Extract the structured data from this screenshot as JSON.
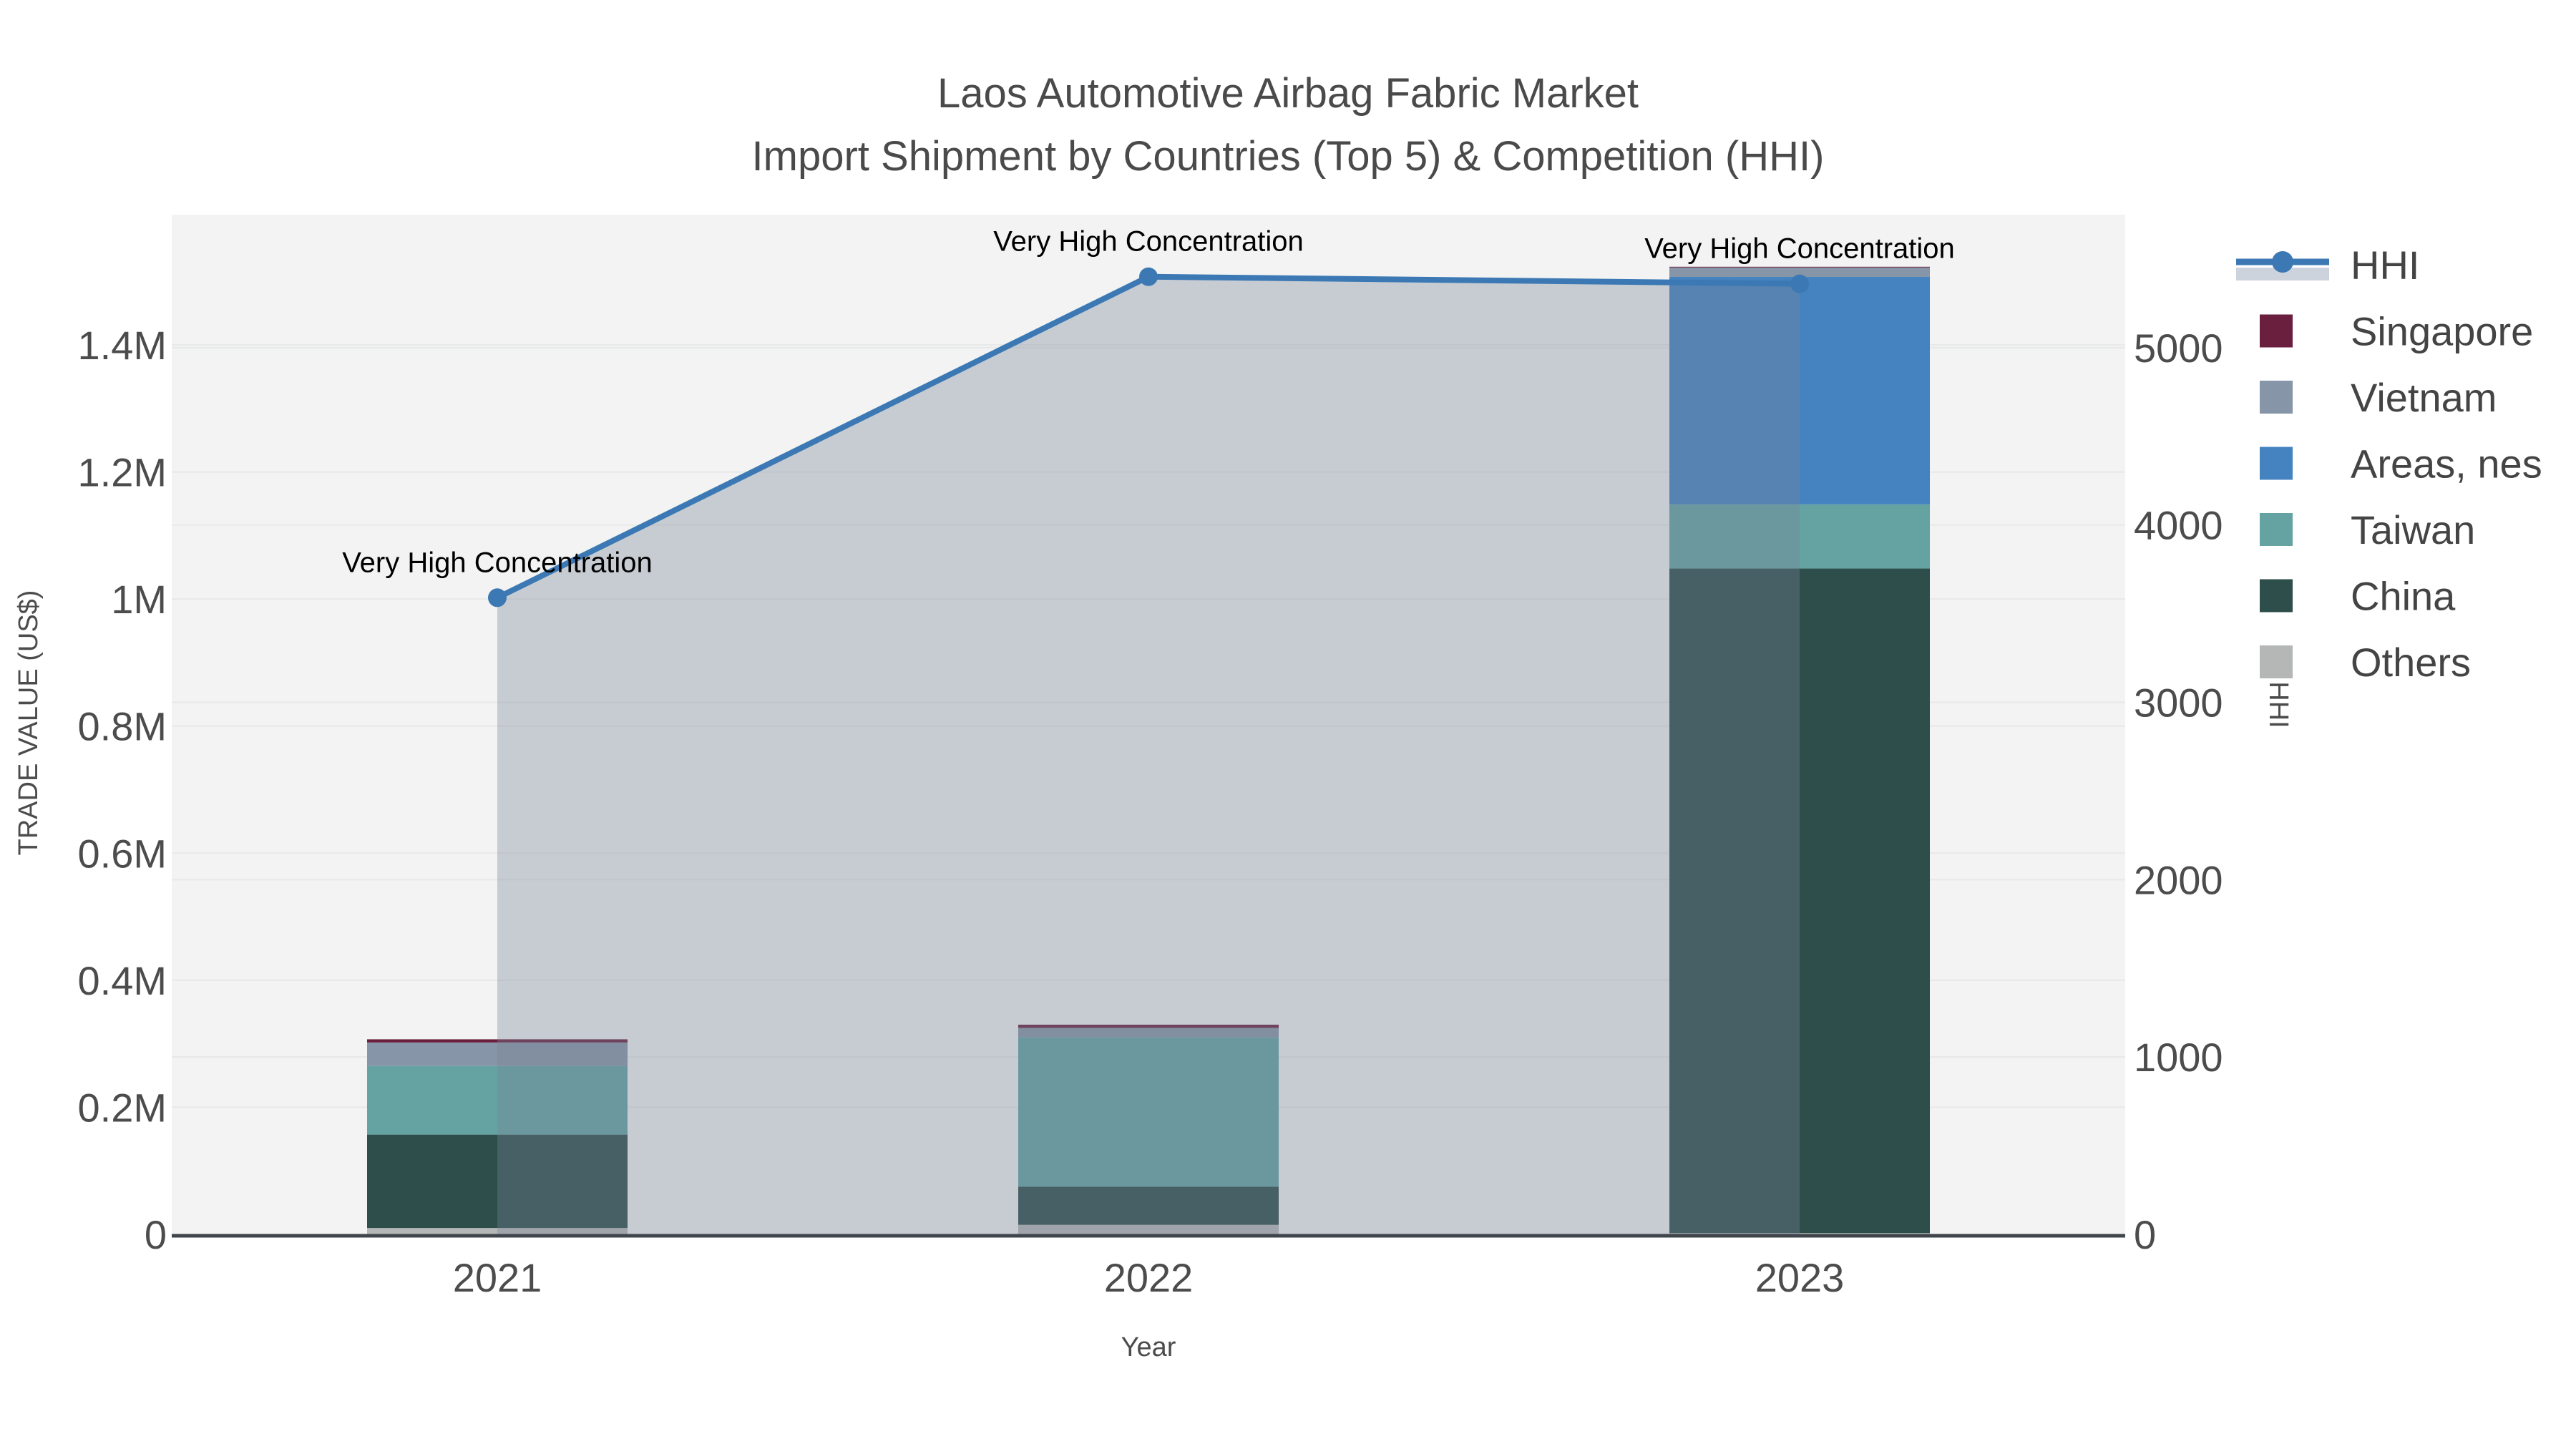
{
  "title": {
    "line1": "Laos Automotive Airbag Fabric Market",
    "line2": "Import Shipment by Countries (Top 5) & Competition (HHI)"
  },
  "axes": {
    "x": {
      "title": "Year",
      "ticks": [
        "2021",
        "2022",
        "2023"
      ]
    },
    "y_left": {
      "title": "TRADE VALUE (US$)",
      "tick_labels": [
        "0",
        "0.2M",
        "0.4M",
        "0.6M",
        "0.8M",
        "1M",
        "1.2M",
        "1.4M"
      ],
      "tick_values": [
        0,
        200000,
        400000,
        600000,
        800000,
        1000000,
        1200000,
        1400000
      ]
    },
    "y_right": {
      "title": "HHI",
      "tick_labels": [
        "0",
        "1000",
        "2000",
        "3000",
        "4000",
        "5000"
      ],
      "tick_values": [
        0,
        1000,
        2000,
        3000,
        4000,
        5000
      ]
    }
  },
  "legend": {
    "items": [
      {
        "label": "HHI",
        "type": "line",
        "color": "#3c79b4",
        "band_color": "#ccd3dc"
      },
      {
        "label": "Singapore",
        "type": "square",
        "color": "#6b1f3f"
      },
      {
        "label": "Vietnam",
        "type": "square",
        "color": "#8695a7"
      },
      {
        "label": "Areas, nes",
        "type": "square",
        "color": "#4483bf"
      },
      {
        "label": "Taiwan",
        "type": "square",
        "color": "#64a3a1"
      },
      {
        "label": "China",
        "type": "square",
        "color": "#2d4e4a"
      },
      {
        "label": "Others",
        "type": "square",
        "color": "#b4b7b6"
      }
    ]
  },
  "colors": {
    "plot_background": "#f2f3f2",
    "gridline": "#e7e9e8",
    "axis_line": "#3f454a",
    "hhi_line": "#3c79b4",
    "hhi_fill": "rgba(120,132,152,0.35)"
  },
  "chart_data": {
    "type": "bar+line",
    "categories": [
      "2021",
      "2022",
      "2023"
    ],
    "bar_series": [
      {
        "name": "Others",
        "color": "#b4b7b6",
        "values": [
          10000,
          15000,
          2000
        ]
      },
      {
        "name": "China",
        "color": "#2d4e4a",
        "values": [
          147000,
          60000,
          1046000
        ]
      },
      {
        "name": "Taiwan",
        "color": "#64a3a1",
        "values": [
          108000,
          235000,
          101000
        ]
      },
      {
        "name": "Areas, nes",
        "color": "#4483bf",
        "values": [
          0,
          0,
          358000
        ]
      },
      {
        "name": "Vietnam",
        "color": "#8695a7",
        "values": [
          37000,
          15000,
          15000
        ]
      },
      {
        "name": "Singapore",
        "color": "#6b1f3f",
        "values": [
          5000,
          5000,
          1000
        ]
      }
    ],
    "line_series": {
      "name": "HHI",
      "axis": "right",
      "color": "#3c79b4",
      "fill_color": "rgba(120,132,152,0.35)",
      "values": [
        3590,
        5400,
        5360
      ]
    },
    "annotations": [
      {
        "text": "Very High Concentration",
        "category": "2021"
      },
      {
        "text": "Very High Concentration",
        "category": "2022"
      },
      {
        "text": "Very High Concentration",
        "category": "2023"
      }
    ],
    "title": "Laos Automotive Airbag Fabric Market\nImport Shipment by Countries (Top 5) & Competition (HHI)",
    "xlabel": "Year",
    "ylabel_left": "TRADE VALUE (US$)",
    "ylabel_right": "HHI",
    "ylim_left": [
      0,
      1605000
    ],
    "ylim_right": [
      0,
      5750
    ],
    "grid": true,
    "legend_position": "right-top"
  }
}
